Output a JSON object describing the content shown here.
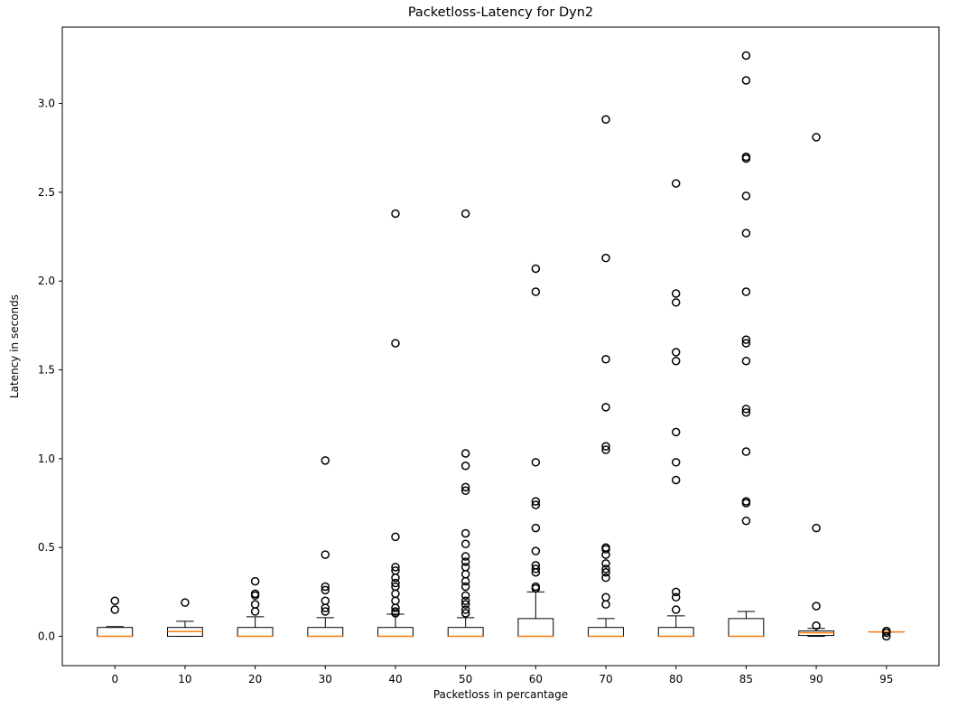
{
  "chart_data": {
    "type": "box",
    "title": "Packetloss-Latency for Dyn2",
    "xlabel": "Packetloss in percantage",
    "ylabel": "Latency in seconds",
    "ylim": [
      -0.165,
      3.43
    ],
    "yticks": [
      0.0,
      0.5,
      1.0,
      1.5,
      2.0,
      2.5,
      3.0
    ],
    "ytick_labels": [
      "0.0",
      "0.5",
      "1.0",
      "1.5",
      "2.0",
      "2.5",
      "3.0"
    ],
    "grid": false,
    "legend": "none",
    "colors": {
      "box": "#000000",
      "median": "#ff7f0e",
      "flier": "#000000"
    },
    "categories": [
      "0",
      "10",
      "20",
      "30",
      "40",
      "50",
      "60",
      "70",
      "80",
      "85",
      "90",
      "95"
    ],
    "boxes": [
      {
        "category": "0",
        "whislo": 0.0,
        "q1": 0.0,
        "med": 0.0,
        "q3": 0.05,
        "whishi": 0.055,
        "fliers": [
          0.15,
          0.2
        ]
      },
      {
        "category": "10",
        "whislo": 0.0,
        "q1": 0.0,
        "med": 0.027,
        "q3": 0.05,
        "whishi": 0.085,
        "fliers": [
          0.19
        ]
      },
      {
        "category": "20",
        "whislo": 0.0,
        "q1": 0.0,
        "med": 0.0,
        "q3": 0.05,
        "whishi": 0.11,
        "fliers": [
          0.14,
          0.18,
          0.23,
          0.24,
          0.31
        ]
      },
      {
        "category": "30",
        "whislo": 0.0,
        "q1": 0.0,
        "med": 0.0,
        "q3": 0.05,
        "whishi": 0.105,
        "fliers": [
          0.14,
          0.16,
          0.2,
          0.26,
          0.28,
          0.46,
          0.99
        ]
      },
      {
        "category": "40",
        "whislo": 0.0,
        "q1": 0.0,
        "med": 0.0,
        "q3": 0.05,
        "whishi": 0.125,
        "fliers": [
          0.13,
          0.14,
          0.16,
          0.2,
          0.24,
          0.28,
          0.3,
          0.33,
          0.37,
          0.39,
          0.56,
          1.65,
          2.38
        ]
      },
      {
        "category": "50",
        "whislo": 0.0,
        "q1": 0.0,
        "med": 0.0,
        "q3": 0.05,
        "whishi": 0.105,
        "fliers": [
          0.13,
          0.15,
          0.18,
          0.2,
          0.23,
          0.28,
          0.31,
          0.35,
          0.39,
          0.42,
          0.45,
          0.52,
          0.58,
          0.82,
          0.84,
          0.96,
          1.03,
          2.38
        ]
      },
      {
        "category": "60",
        "whislo": 0.0,
        "q1": 0.0,
        "med": 0.0,
        "q3": 0.1,
        "whishi": 0.25,
        "fliers": [
          0.27,
          0.28,
          0.36,
          0.38,
          0.4,
          0.48,
          0.61,
          0.74,
          0.76,
          0.98,
          1.94,
          2.07
        ]
      },
      {
        "category": "70",
        "whislo": 0.0,
        "q1": 0.0,
        "med": 0.0,
        "q3": 0.05,
        "whishi": 0.1,
        "fliers": [
          0.18,
          0.22,
          0.33,
          0.36,
          0.38,
          0.41,
          0.46,
          0.49,
          0.5,
          1.05,
          1.07,
          1.29,
          1.56,
          2.13,
          2.91
        ]
      },
      {
        "category": "80",
        "whislo": 0.0,
        "q1": 0.0,
        "med": 0.0,
        "q3": 0.05,
        "whishi": 0.115,
        "fliers": [
          0.15,
          0.22,
          0.25,
          0.88,
          0.98,
          1.15,
          1.55,
          1.6,
          1.88,
          1.93,
          2.55
        ]
      },
      {
        "category": "85",
        "whislo": 0.0,
        "q1": 0.0,
        "med": 0.0,
        "q3": 0.1,
        "whishi": 0.14,
        "fliers": [
          0.65,
          0.75,
          0.76,
          1.04,
          1.26,
          1.28,
          1.55,
          1.65,
          1.67,
          1.94,
          2.27,
          2.48,
          2.69,
          2.7,
          3.13,
          3.27
        ]
      },
      {
        "category": "90",
        "whislo": 0.0,
        "q1": 0.005,
        "med": 0.02,
        "q3": 0.03,
        "whishi": 0.045,
        "fliers": [
          0.06,
          0.17,
          0.61,
          2.81
        ]
      },
      {
        "category": "95",
        "whislo": 0.025,
        "q1": 0.025,
        "med": 0.025,
        "q3": 0.025,
        "whishi": 0.025,
        "fliers": [
          0.0,
          0.02,
          0.03
        ]
      }
    ]
  }
}
